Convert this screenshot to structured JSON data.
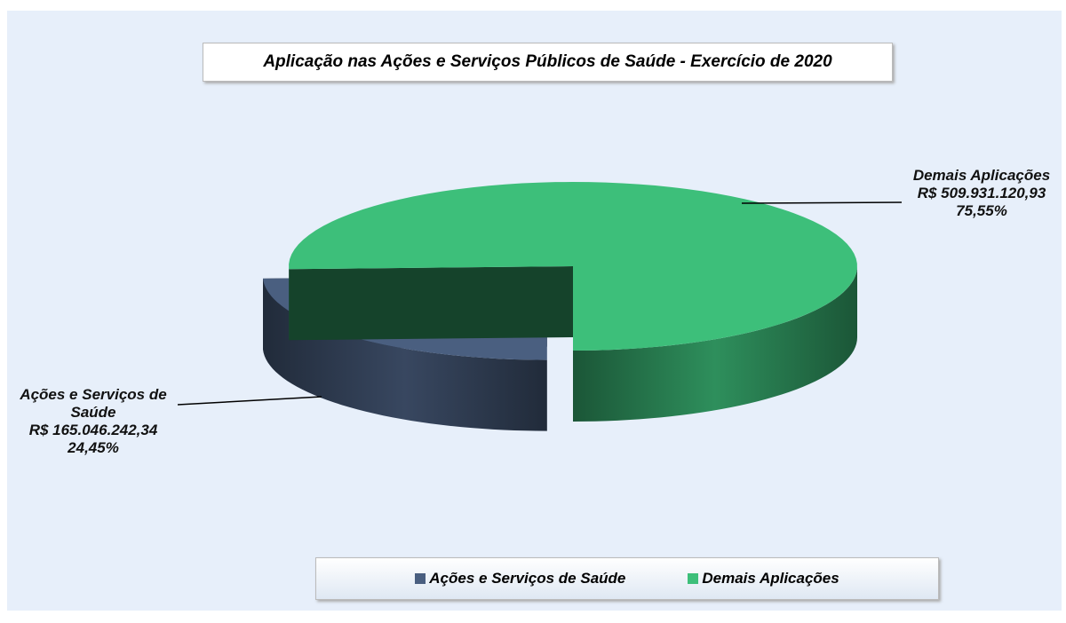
{
  "chart_data": {
    "type": "pie",
    "title": "Aplicação nas Ações e Serviços Públicos de Saúde - Exercício de 2020",
    "categories": [
      "Ações e Serviços de Saúde",
      "Demais Aplicações"
    ],
    "values": [
      24.45,
      75.55
    ],
    "value_labels": [
      "24,45%",
      "75,55%"
    ],
    "amounts": [
      165046242.34,
      509931120.93
    ],
    "amount_labels": [
      "R$ 165.046.242,34",
      "R$ 509.931.120,93"
    ],
    "colors": [
      "#4a5f80",
      "#3dbf7a"
    ],
    "legend": "bottom"
  }
}
